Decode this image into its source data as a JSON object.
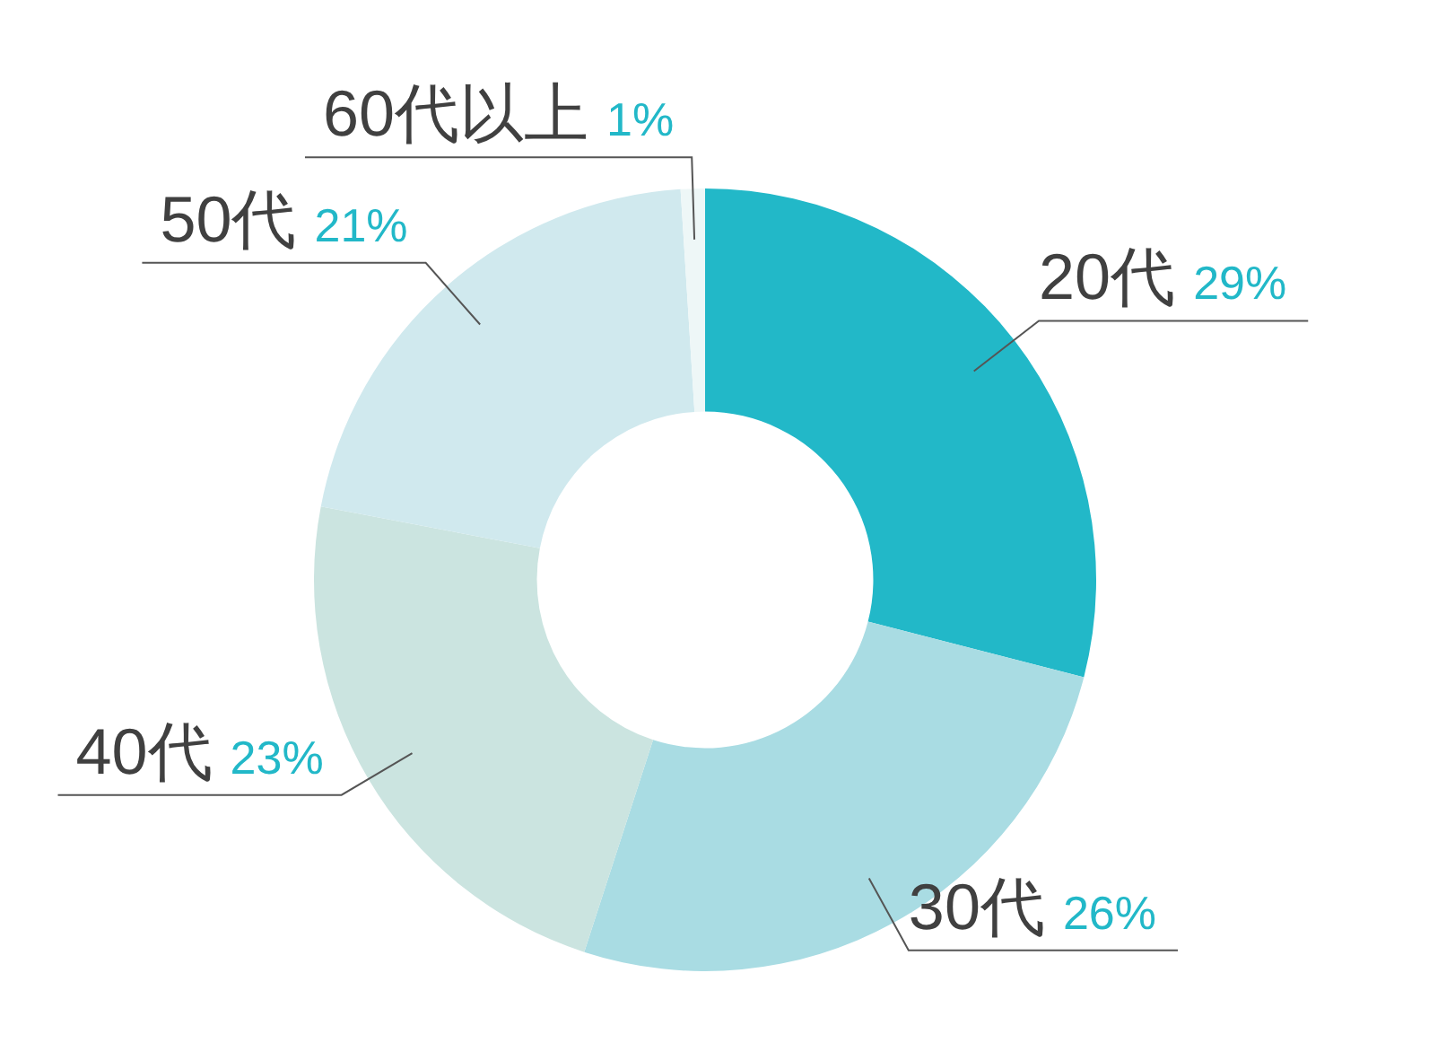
{
  "chart_data": {
    "type": "donut",
    "categories": [
      "20代",
      "30代",
      "40代",
      "50代",
      "60代以上"
    ],
    "values": [
      29,
      26,
      23,
      21,
      1
    ],
    "colors": [
      "#22b8c8",
      "#a9dce3",
      "#cbe4e0",
      "#d0e9ee",
      "#eef7f7"
    ],
    "value_labels": [
      "29%",
      "26%",
      "23%",
      "21%",
      "1%"
    ]
  }
}
